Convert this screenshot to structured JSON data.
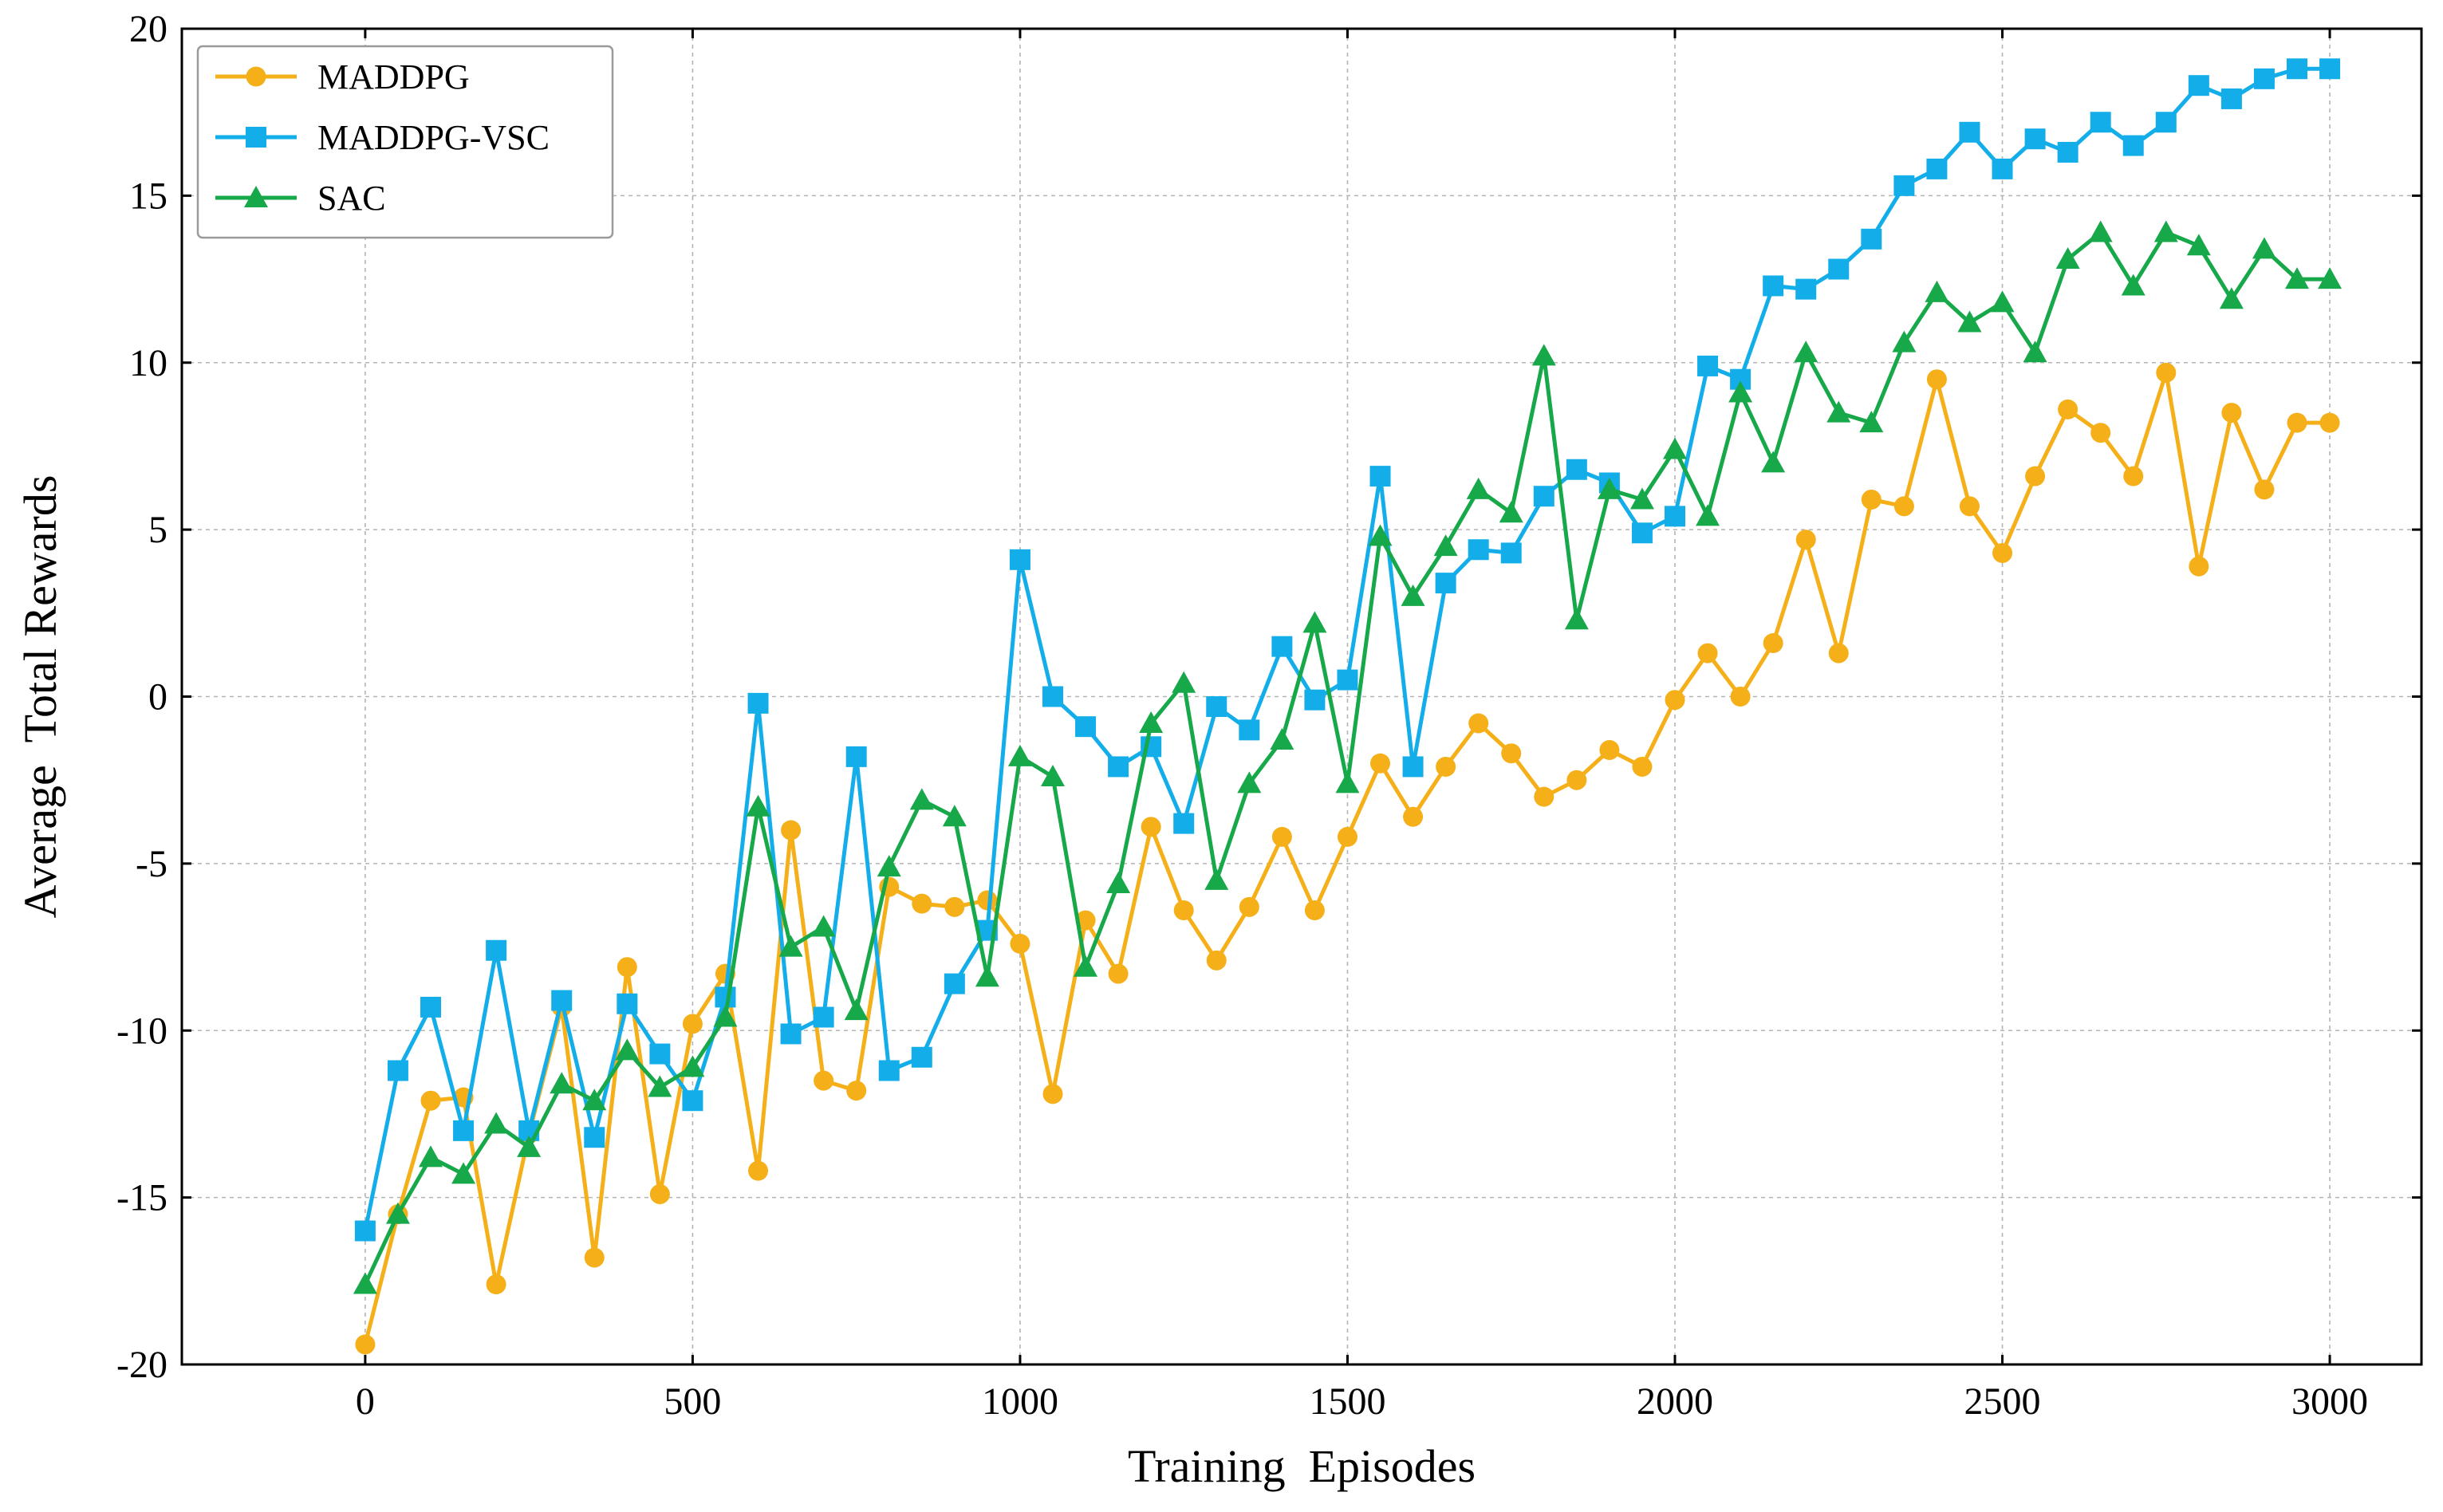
{
  "chart_data": {
    "type": "line",
    "title": "",
    "xlabel": "Training  Episodes",
    "ylabel": "Average  Total Rewards",
    "xlim": [
      -280,
      3140
    ],
    "ylim": [
      -20,
      20
    ],
    "xticks": [
      0,
      500,
      1000,
      1500,
      2000,
      2500,
      3000
    ],
    "yticks": [
      -20,
      -15,
      -10,
      -5,
      0,
      5,
      10,
      15,
      20
    ],
    "xtick_labels": [
      "0",
      "500",
      "1000",
      "1500",
      "2000",
      "2500",
      "3000"
    ],
    "ytick_labels": [
      "-20",
      "-15",
      "-10",
      "-5",
      "0",
      "5",
      "10",
      "15",
      "20"
    ],
    "grid": true,
    "legend_position": "top-left",
    "x": [
      0,
      50,
      100,
      150,
      200,
      250,
      300,
      350,
      400,
      450,
      500,
      550,
      600,
      650,
      700,
      750,
      800,
      850,
      900,
      950,
      1000,
      1050,
      1100,
      1150,
      1200,
      1250,
      1300,
      1350,
      1400,
      1450,
      1500,
      1550,
      1600,
      1650,
      1700,
      1750,
      1800,
      1850,
      1900,
      1950,
      2000,
      2050,
      2100,
      2150,
      2200,
      2250,
      2300,
      2350,
      2400,
      2450,
      2500,
      2550,
      2600,
      2650,
      2700,
      2750,
      2800,
      2850,
      2900,
      2950,
      3000
    ],
    "series": [
      {
        "name": "MADDPG",
        "color": "#F5AF19",
        "marker": "circle",
        "values": [
          -19.4,
          -15.5,
          -12.1,
          -12.0,
          -17.6,
          -13.1,
          -9.3,
          -16.8,
          -8.1,
          -14.9,
          -9.8,
          -8.3,
          -14.2,
          -4.0,
          -11.5,
          -11.8,
          -5.7,
          -6.2,
          -6.3,
          -6.1,
          -7.4,
          -11.9,
          -6.7,
          -8.3,
          -3.9,
          -6.4,
          -7.9,
          -6.3,
          -4.2,
          -6.4,
          -4.2,
          -2.0,
          -3.6,
          -2.1,
          -0.8,
          -1.7,
          -3.0,
          -2.5,
          -1.6,
          -2.1,
          -0.1,
          1.3,
          0.0,
          1.6,
          4.7,
          1.3,
          5.9,
          5.7,
          9.5,
          5.7,
          4.3,
          6.6,
          8.6,
          7.9,
          6.6,
          9.7,
          3.9,
          8.5,
          6.2,
          8.2,
          8.2
        ]
      },
      {
        "name": "MADDPG-VSC",
        "color": "#13AEEA",
        "marker": "square",
        "values": [
          -16.0,
          -11.2,
          -9.3,
          -13.0,
          -7.6,
          -13.0,
          -9.1,
          -13.2,
          -9.2,
          -10.7,
          -12.1,
          -9.0,
          -0.2,
          -10.1,
          -9.6,
          -1.8,
          -11.2,
          -10.8,
          -8.6,
          -7.0,
          4.1,
          0.0,
          -0.9,
          -2.1,
          -1.5,
          -3.8,
          -0.3,
          -1.0,
          1.5,
          -0.1,
          0.5,
          6.6,
          -2.1,
          3.4,
          4.4,
          4.3,
          6.0,
          6.8,
          6.4,
          4.9,
          5.4,
          9.9,
          9.5,
          12.3,
          12.2,
          12.8,
          13.7,
          15.3,
          15.8,
          16.9,
          15.8,
          16.7,
          16.3,
          17.2,
          16.5,
          17.2,
          18.3,
          17.9,
          18.5,
          18.8,
          18.8
        ]
      },
      {
        "name": "SAC",
        "color": "#17A84A",
        "marker": "triangle",
        "values": [
          -17.6,
          -15.5,
          -13.8,
          -14.3,
          -12.8,
          -13.5,
          -11.6,
          -12.1,
          -10.6,
          -11.7,
          -11.1,
          -9.6,
          -3.3,
          -7.5,
          -6.9,
          -9.4,
          -5.1,
          -3.1,
          -3.6,
          -8.4,
          -1.8,
          -2.4,
          -8.1,
          -5.6,
          -0.8,
          0.4,
          -5.5,
          -2.6,
          -1.3,
          2.2,
          -2.6,
          4.8,
          3.0,
          4.5,
          6.2,
          5.5,
          10.2,
          2.3,
          6.2,
          5.9,
          7.4,
          5.4,
          9.1,
          7.0,
          10.3,
          8.5,
          8.2,
          10.6,
          12.1,
          11.2,
          11.8,
          10.3,
          13.1,
          13.9,
          12.3,
          13.9,
          13.5,
          11.9,
          13.4,
          12.5,
          12.5
        ]
      }
    ]
  }
}
